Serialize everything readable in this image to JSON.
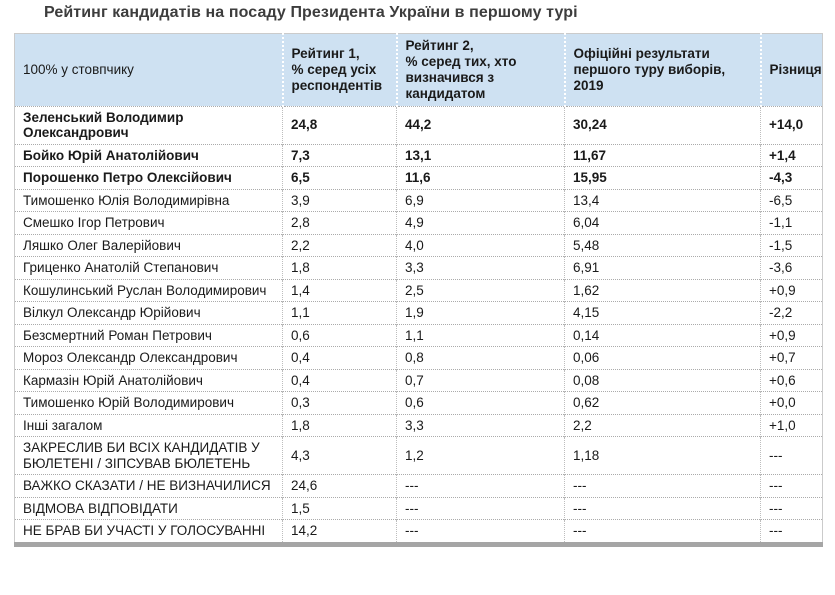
{
  "title": "Рейтинг кандидатів на посаду Президента України в першому турі",
  "chart_data": {
    "type": "table",
    "title": "Рейтинг кандидатів на посаду Президента України в першому турі",
    "columns": [
      "100% у стовпчику",
      "Рейтинг 1, % серед усіх респондентів",
      "Рейтинг 2, % серед тих, хто визначився з кандидатом",
      "Офіційні результати першого туру виборів, 2019",
      "Різниця"
    ],
    "header_display": [
      "100% у стовпчику",
      "Рейтинг 1,\n% серед усіх респондентів",
      "Рейтинг 2,\n% серед тих, хто визначився з кандидатом",
      "Офіційні результати першого туру виборів, 2019",
      "Різниця"
    ],
    "missing_value": "---",
    "rows": [
      {
        "name": "Зеленський Володимир Олександрович",
        "rating1": "24,8",
        "rating2": "44,2",
        "official_2019": "30,24",
        "difference": "+14,0",
        "bold": true
      },
      {
        "name": "Бойко Юрій Анатолійович",
        "rating1": "7,3",
        "rating2": "13,1",
        "official_2019": "11,67",
        "difference": "+1,4",
        "bold": true
      },
      {
        "name": "Порошенко Петро Олексійович",
        "rating1": "6,5",
        "rating2": "11,6",
        "official_2019": "15,95",
        "difference": "-4,3",
        "bold": true
      },
      {
        "name": "Тимошенко Юлія Володимирівна",
        "rating1": "3,9",
        "rating2": "6,9",
        "official_2019": "13,4",
        "difference": "-6,5",
        "bold": false
      },
      {
        "name": "Смешко Ігор Петрович",
        "rating1": "2,8",
        "rating2": "4,9",
        "official_2019": "6,04",
        "difference": "-1,1",
        "bold": false
      },
      {
        "name": "Ляшко Олег Валерійович",
        "rating1": "2,2",
        "rating2": "4,0",
        "official_2019": "5,48",
        "difference": "-1,5",
        "bold": false
      },
      {
        "name": "Гриценко Анатолій Степанович",
        "rating1": "1,8",
        "rating2": "3,3",
        "official_2019": "6,91",
        "difference": "-3,6",
        "bold": false
      },
      {
        "name": "Кошулинський Руслан Володимирович",
        "rating1": "1,4",
        "rating2": "2,5",
        "official_2019": "1,62",
        "difference": "+0,9",
        "bold": false
      },
      {
        "name": "Вілкул Олександр Юрійович",
        "rating1": "1,1",
        "rating2": "1,9",
        "official_2019": "4,15",
        "difference": "-2,2",
        "bold": false
      },
      {
        "name": "Безсмертний Роман Петрович",
        "rating1": "0,6",
        "rating2": "1,1",
        "official_2019": "0,14",
        "difference": "+0,9",
        "bold": false
      },
      {
        "name": "Мороз Олександр Олександрович",
        "rating1": "0,4",
        "rating2": "0,8",
        "official_2019": "0,06",
        "difference": "+0,7",
        "bold": false
      },
      {
        "name": "Кармазін Юрій Анатолійович",
        "rating1": "0,4",
        "rating2": "0,7",
        "official_2019": "0,08",
        "difference": "+0,6",
        "bold": false
      },
      {
        "name": "Тимошенко Юрій Володимирович",
        "rating1": "0,3",
        "rating2": "0,6",
        "official_2019": "0,62",
        "difference": "+0,0",
        "bold": false
      },
      {
        "name": "Інші загалом",
        "rating1": "1,8",
        "rating2": "3,3",
        "official_2019": "2,2",
        "difference": "+1,0",
        "bold": false
      },
      {
        "name": "ЗАКРЕСЛИВ БИ ВСІХ КАНДИДАТІВ У БЮЛЕТЕНІ / ЗІПСУВАВ БЮЛЕТЕНЬ",
        "rating1": "4,3",
        "rating2": "1,2",
        "official_2019": "1,18",
        "difference": "---",
        "bold": false
      },
      {
        "name": "ВАЖКО СКАЗАТИ / НЕ ВИЗНАЧИЛИСЯ",
        "rating1": "24,6",
        "rating2": "---",
        "official_2019": "---",
        "difference": "---",
        "bold": false
      },
      {
        "name": "ВІДМОВА ВІДПОВІДАТИ",
        "rating1": "1,5",
        "rating2": "---",
        "official_2019": "---",
        "difference": "---",
        "bold": false
      },
      {
        "name": "НЕ БРАВ БИ УЧАСТІ У ГОЛОСУВАННІ",
        "rating1": "14,2",
        "rating2": "---",
        "official_2019": "---",
        "difference": "---",
        "bold": false
      }
    ]
  },
  "colors": {
    "header_background": "#cee1f2",
    "title_text": "#3d3d3d",
    "body_text": "#1a1a1a",
    "bottom_bar": "#a5a5a5"
  }
}
